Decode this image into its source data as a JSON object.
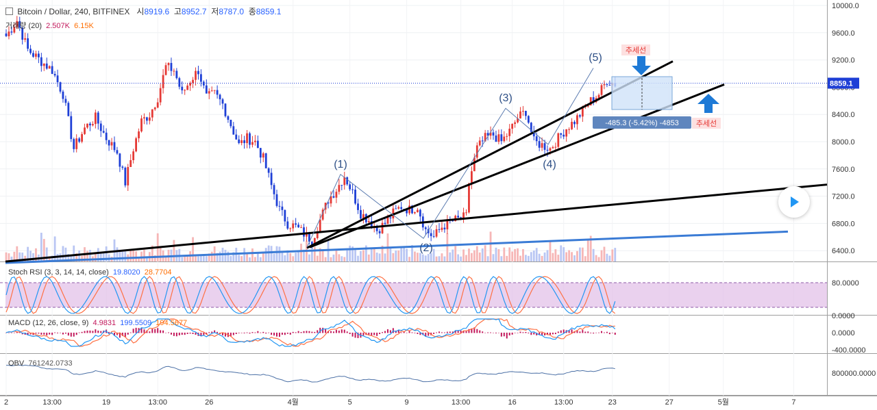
{
  "header": {
    "symbol": "Bitcoin / Dollar, 240, BITFINEX",
    "open_label": "시",
    "open": "8919.6",
    "high_label": "고",
    "high": "8952.7",
    "low_label": "저",
    "low": "8787.0",
    "close_label": "종",
    "close": "8859.1",
    "volume_label": "거래량 (20)",
    "volume_val": "2.507K",
    "volume_ma": "6.15K"
  },
  "colors": {
    "up": "#e53935",
    "down": "#1e3fd6",
    "rsi_k": "#2196f3",
    "rsi_d": "#ff7043",
    "rsi_band": "#e1bee7",
    "macd": "#2196f3",
    "signal": "#ff7043",
    "hist": "#c2185b",
    "obv": "#4a6fa5",
    "trendline": "#000000",
    "support": "#3a7bd5",
    "annotation": "#e53935",
    "arrow": "#1e7ad6"
  },
  "chart_data": [
    {
      "type": "candlestick",
      "title": "Bitcoin / Dollar, 240, BITFINEX",
      "ylim": [
        6200,
        10000
      ],
      "y_ticks": [
        "10000.0",
        "9600.0",
        "9200.0",
        "8800.0",
        "8400.0",
        "8000.0",
        "7600.0",
        "7200.0",
        "6800.0",
        "6400.0"
      ],
      "last_price": "8859.1",
      "x_ticks": [
        "2",
        "13:00",
        "19",
        "13:00",
        "26",
        "4월",
        "5",
        "9",
        "13:00",
        "16",
        "13:00",
        "23",
        "27",
        "5월",
        "7"
      ],
      "wave_labels": [
        "(1)",
        "(2)",
        "(3)",
        "(4)",
        "(5)"
      ],
      "close_path": [
        [
          0,
          9550
        ],
        [
          4,
          9780
        ],
        [
          8,
          9350
        ],
        [
          13,
          9180
        ],
        [
          17,
          9050
        ],
        [
          21,
          8700
        ],
        [
          25,
          7900
        ],
        [
          29,
          8200
        ],
        [
          33,
          8350
        ],
        [
          37,
          8050
        ],
        [
          41,
          7850
        ],
        [
          44,
          7400
        ],
        [
          47,
          7900
        ],
        [
          50,
          8300
        ],
        [
          53,
          8400
        ],
        [
          56,
          8650
        ],
        [
          59,
          9100
        ],
        [
          62,
          9050
        ],
        [
          65,
          8700
        ],
        [
          68,
          8900
        ],
        [
          71,
          9050
        ],
        [
          74,
          8650
        ],
        [
          77,
          8700
        ],
        [
          80,
          8550
        ],
        [
          83,
          8250
        ],
        [
          86,
          7950
        ],
        [
          89,
          8050
        ],
        [
          92,
          8000
        ],
        [
          95,
          7750
        ],
        [
          98,
          7350
        ],
        [
          101,
          7000
        ],
        [
          104,
          6800
        ],
        [
          107,
          6750
        ],
        [
          110,
          6650
        ],
        [
          113,
          6550
        ],
        [
          116,
          6850
        ],
        [
          119,
          7150
        ],
        [
          122,
          7300
        ],
        [
          125,
          7500
        ],
        [
          128,
          7250
        ],
        [
          131,
          6950
        ],
        [
          134,
          6850
        ],
        [
          137,
          6700
        ],
        [
          140,
          6800
        ],
        [
          143,
          6950
        ],
        [
          146,
          7050
        ],
        [
          149,
          7000
        ],
        [
          152,
          7050
        ],
        [
          155,
          6700
        ],
        [
          158,
          6600
        ],
        [
          161,
          6750
        ],
        [
          164,
          6820
        ],
        [
          167,
          6860
        ],
        [
          170,
          6900
        ],
        [
          171,
          7400
        ],
        [
          174,
          7900
        ],
        [
          177,
          8050
        ],
        [
          180,
          8100
        ],
        [
          183,
          8000
        ],
        [
          186,
          8150
        ],
        [
          189,
          8350
        ],
        [
          192,
          8450
        ],
        [
          195,
          8000
        ],
        [
          198,
          7950
        ],
        [
          201,
          7900
        ],
        [
          204,
          8050
        ],
        [
          207,
          8200
        ],
        [
          210,
          8300
        ],
        [
          213,
          8450
        ],
        [
          216,
          8600
        ],
        [
          219,
          8700
        ],
        [
          222,
          8900
        ],
        [
          225,
          8850
        ]
      ]
    },
    {
      "type": "line",
      "title": "Stoch RSI (3, 3, 14, 14, close)",
      "series": [
        {
          "name": "K",
          "value": "19.8020"
        },
        {
          "name": "D",
          "value": "28.7704"
        }
      ],
      "ylim": [
        0,
        100
      ],
      "y_ticks": [
        "80.0000",
        "0.0000"
      ],
      "band": [
        20,
        80
      ]
    },
    {
      "type": "line",
      "title": "MACD (12, 26, close, 9)",
      "series": [
        {
          "name": "Histogram",
          "value": "4.9831"
        },
        {
          "name": "MACD",
          "value": "199.5509"
        },
        {
          "name": "Signal",
          "value": "194.5677"
        }
      ],
      "y_ticks": [
        "0.0000",
        "-400.0000"
      ]
    },
    {
      "type": "line",
      "title": "OBV",
      "series": [
        {
          "name": "OBV",
          "value": "761242.0733"
        }
      ],
      "y_ticks": [
        "800000.0000"
      ]
    }
  ],
  "annotations": {
    "trend_label": "추세선",
    "measure": "-485.3 (-5.42%) -4853"
  },
  "play": {
    "icon": "play-icon"
  }
}
